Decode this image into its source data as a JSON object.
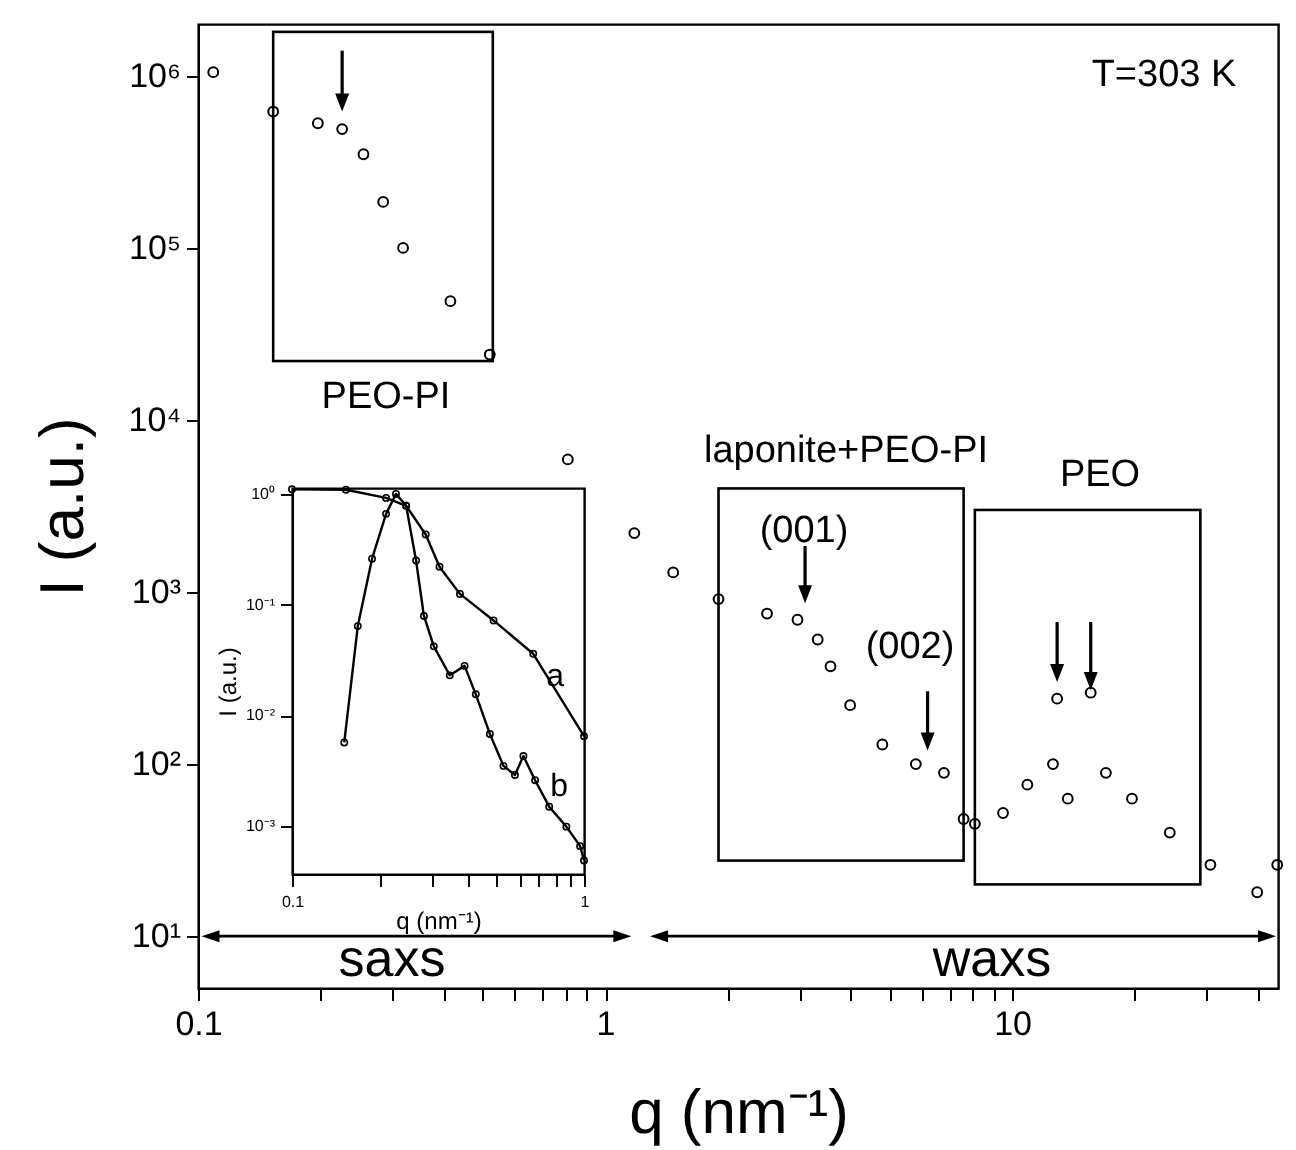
{
  "chart_data": [
    {
      "type": "scatter",
      "xlabel": "q (nm⁻¹)",
      "ylabel": "I (a.u.)",
      "log": "xy",
      "marker": "circle",
      "xlim": [
        0.1,
        45
      ],
      "ylim": [
        5,
        2000000
      ],
      "xticks": [
        0.1,
        {
          "value": 0.2,
          "label": null
        },
        {
          "value": 0.3,
          "label": null
        },
        {
          "value": 0.4,
          "label": null
        },
        {
          "value": 0.5,
          "label": null
        },
        {
          "value": 0.6,
          "label": null
        },
        {
          "value": 0.7,
          "label": null
        },
        {
          "value": 0.8,
          "label": null
        },
        {
          "value": 0.9,
          "label": null
        },
        1,
        {
          "value": 2,
          "label": null
        },
        {
          "value": 3,
          "label": null
        },
        {
          "value": 4,
          "label": null
        },
        {
          "value": 5,
          "label": null
        },
        {
          "value": 6,
          "label": null
        },
        {
          "value": 7,
          "label": null
        },
        {
          "value": 8,
          "label": null
        },
        {
          "value": 9,
          "label": null
        },
        10,
        {
          "value": 20,
          "label": null
        },
        {
          "value": 30,
          "label": null
        },
        {
          "value": 40,
          "label": null
        }
      ],
      "yticks": [
        {
          "value": 10,
          "label": "10¹"
        },
        {
          "value": 100,
          "label": "10²"
        },
        {
          "value": 1000,
          "label": "10³"
        },
        {
          "value": 10000,
          "label": "10⁴"
        },
        {
          "value": 100000,
          "label": "10⁵"
        },
        {
          "value": 1000000,
          "label": "10⁶"
        }
      ],
      "x": [
        0.109,
        0.153,
        0.197,
        0.226,
        0.255,
        0.285,
        0.319,
        0.417,
        0.521,
        0.81,
        1.18,
        1.47,
        1.9,
        2.5,
        2.97,
        3.33,
        3.58,
        4.0,
        4.8,
        5.8,
        6.8,
        7.6,
        8.1,
        9.5,
        10.9,
        12.6,
        12.9,
        13.7,
        15.6,
        17.0,
        19.7,
        24.4,
        30.7,
        40.0,
        44.8
      ],
      "series": [
        {
          "color": "#000000",
          "values": [
            1050000,
            620000,
            530000,
            490000,
            350000,
            185000,
            100000,
            49000,
            24000,
            5900,
            2200,
            1300,
            910,
            750,
            690,
            530,
            370,
            220,
            130,
            100,
            89,
            48,
            45,
            52,
            76,
            100,
            240,
            63,
            260,
            89,
            63,
            40,
            26,
            18,
            26
          ]
        }
      ],
      "annotations": [
        "T=303 K",
        "PEO-PI",
        "laponite+PEO-PI",
        "PEO",
        "(001)",
        "(002)",
        "saxs",
        "waxs"
      ]
    },
    {
      "type": "line",
      "xlabel": "q (nm⁻¹)",
      "ylabel": "I (a.u.)",
      "log": "xy",
      "marker": "circle",
      "xlim": [
        0.1,
        1
      ],
      "ylim": [
        0.00037,
        1.13
      ],
      "xticks": [
        0.1,
        {
          "value": 0.2,
          "label": null
        },
        {
          "value": 0.3,
          "label": null
        },
        {
          "value": 0.4,
          "label": null
        },
        {
          "value": 0.5,
          "label": null
        },
        {
          "value": 0.6,
          "label": null
        },
        {
          "value": 0.7,
          "label": null
        },
        {
          "value": 0.8,
          "label": null
        },
        {
          "value": 0.9,
          "label": null
        },
        1
      ],
      "yticks": [
        {
          "value": 0.001,
          "label": "10⁻³"
        },
        {
          "value": 0.01,
          "label": "10⁻²"
        },
        {
          "value": 0.1,
          "label": "10⁻¹"
        },
        {
          "value": 1,
          "label": "10⁰"
        }
      ],
      "series": [
        {
          "name": "a",
          "color": "#000000",
          "x": [
            0.1,
            0.153,
            0.21,
            0.246,
            0.287,
            0.32,
            0.376,
            0.49,
            0.67,
            1.0
          ],
          "values": [
            1.1,
            1.09,
            0.92,
            0.78,
            0.43,
            0.22,
            0.125,
            0.072,
            0.036,
            0.0065
          ]
        },
        {
          "name": "b",
          "color": "#000000",
          "x": [
            0.151,
            0.168,
            0.188,
            0.21,
            0.227,
            0.246,
            0.266,
            0.283,
            0.306,
            0.347,
            0.39,
            0.426,
            0.476,
            0.53,
            0.58,
            0.62,
            0.68,
            0.76,
            0.87,
            0.97,
            1.0
          ],
          "values": [
            0.0057,
            0.064,
            0.26,
            0.66,
            1.0,
            0.78,
            0.25,
            0.079,
            0.042,
            0.023,
            0.028,
            0.0155,
            0.0068,
            0.0035,
            0.0029,
            0.0043,
            0.0026,
            0.0015,
            0.00099,
            0.00066,
            0.00049
          ]
        }
      ]
    }
  ]
}
